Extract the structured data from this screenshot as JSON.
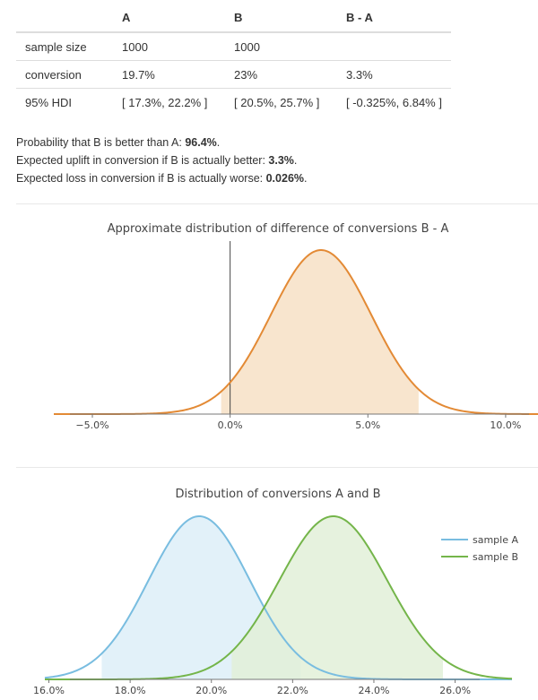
{
  "table": {
    "headers": [
      "",
      "A",
      "B",
      "B - A"
    ],
    "rows": [
      {
        "label": "sample size",
        "a": "1000",
        "b": "1000",
        "diff": ""
      },
      {
        "label": "conversion",
        "a": "19.7%",
        "b": "23%",
        "diff": "3.3%"
      },
      {
        "label": "95% HDI",
        "a": "[ 17.3%, 22.2% ]",
        "b": "[ 20.5%, 25.7% ]",
        "diff": "[ -0.325%, 6.84% ]"
      }
    ]
  },
  "summary": {
    "prob_label": "Probability that B is better than A: ",
    "prob_value": "96.4%",
    "uplift_label": "Expected uplift in conversion if B is actually better: ",
    "uplift_value": "3.3%",
    "loss_label": "Expected loss in conversion if B is actually worse: ",
    "loss_value": "0.026%"
  },
  "chart_data": [
    {
      "type": "area",
      "title": "Approximate distribution of difference of conversions B - A",
      "xlabel": "",
      "ylabel": "",
      "xlim": [
        -6.4,
        11.5
      ],
      "xticks": [
        -5,
        0,
        5,
        10
      ],
      "tick_labels": [
        "−5.0%",
        "0.0%",
        "5.0%",
        "10.0%"
      ],
      "series": [
        {
          "mean": 3.3,
          "sd": 1.82,
          "color": "#e38a35",
          "fill": "#f7e0c6",
          "hdi": [
            -0.325,
            6.84
          ]
        }
      ],
      "vline": 0,
      "grid": false
    },
    {
      "type": "area",
      "title": "Distribution of conversions A and B",
      "xlabel": "",
      "ylabel": "",
      "xlim": [
        15.9,
        27.4
      ],
      "xticks": [
        16,
        18,
        20,
        22,
        24,
        26
      ],
      "tick_labels": [
        "16.0%",
        "18.0%",
        "20.0%",
        "22.0%",
        "24.0%",
        "26.0%"
      ],
      "legend_position": "top-right",
      "series": [
        {
          "name": "sample A",
          "mean": 19.7,
          "sd": 1.25,
          "color": "#79bde0",
          "fill": "#ddeef8",
          "hdi": [
            17.3,
            22.2
          ]
        },
        {
          "name": "sample B",
          "mean": 23.0,
          "sd": 1.33,
          "color": "#74b54a",
          "fill": "#e2f0d8",
          "hdi": [
            20.5,
            25.7
          ]
        }
      ],
      "grid": false
    }
  ]
}
